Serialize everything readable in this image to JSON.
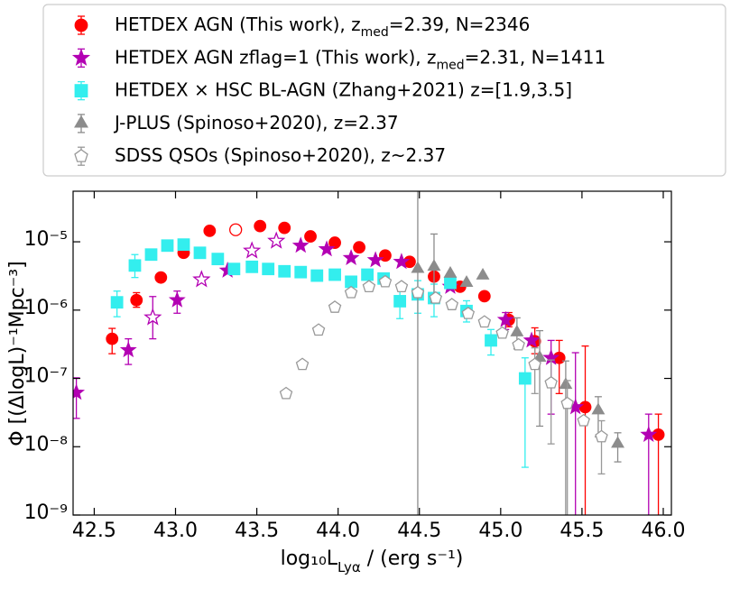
{
  "chart_data": {
    "type": "scatter",
    "xlabel": [
      "log₁₀L",
      "Lyα",
      " / (erg s⁻¹)"
    ],
    "ylabel": "Φ [(ΔlogL)⁻¹Mpc⁻³]",
    "xlim": [
      42.37,
      46.05
    ],
    "ylim": [
      1e-09,
      5.5e-05
    ],
    "ylog": true,
    "xticks": [
      {
        "value": 42.5,
        "label": "42.5"
      },
      {
        "value": 43,
        "label": "43.0"
      },
      {
        "value": 43.5,
        "label": "43.5"
      },
      {
        "value": 44,
        "label": "44.0"
      },
      {
        "value": 44.5,
        "label": "44.5"
      },
      {
        "value": 45,
        "label": "45.0"
      },
      {
        "value": 45.5,
        "label": "45.5"
      },
      {
        "value": 46,
        "label": "46.0"
      }
    ],
    "yticks": [
      {
        "value": 1e-09,
        "label": "10⁻⁹"
      },
      {
        "value": 1e-08,
        "label": "10⁻⁸"
      },
      {
        "value": 1e-07,
        "label": "10⁻⁷"
      },
      {
        "value": 1e-06,
        "label": "10⁻⁶"
      },
      {
        "value": 1e-05,
        "label": "10⁻⁵"
      }
    ],
    "legend": "top",
    "series": [
      {
        "name": [
          "HETDEX AGN (This work), z",
          "med",
          "=2.39, N=2346"
        ],
        "color": "#ff0000",
        "marker": "circle",
        "x": [
          42.61,
          42.76,
          42.91,
          43.05,
          43.21,
          43.37,
          43.52,
          43.67,
          43.83,
          43.98,
          44.13,
          44.29,
          44.44,
          44.59,
          44.75,
          44.9,
          45.05,
          45.21,
          45.36,
          45.52,
          45.97
        ],
        "values": [
          3.8e-07,
          1.4e-06,
          3e-06,
          6.9e-06,
          1.45e-05,
          1.5e-05,
          1.7e-05,
          1.6e-05,
          1.2e-05,
          9.7e-06,
          8.3e-06,
          6.3e-06,
          5.1e-06,
          3.1e-06,
          2.2e-06,
          1.6e-06,
          7.2e-07,
          3.5e-07,
          2e-07,
          3.8e-08,
          1.5e-08
        ],
        "errors": [
          [
            1.5e-07,
            1.6e-07
          ],
          [
            3e-07,
            4e-07
          ],
          null,
          null,
          null,
          null,
          null,
          null,
          null,
          null,
          null,
          null,
          null,
          null,
          null,
          null,
          [
            1.5e-07,
            2e-07
          ],
          [
            1.2e-07,
            2e-07
          ],
          [
            1.4e-07,
            1.6e-07
          ],
          [
            3.8e-08,
            2.6e-07
          ],
          [
            1.5e-08,
            1.5e-08
          ]
        ],
        "hollow": [
          5
        ]
      },
      {
        "name": [
          "HETDEX AGN zflag=1 (This work), z",
          "med",
          "=2.31, N=1411"
        ],
        "color": "#b300b3",
        "marker": "star",
        "x": [
          42.39,
          42.71,
          42.86,
          43.01,
          43.16,
          43.32,
          43.47,
          43.62,
          43.77,
          43.93,
          44.08,
          44.23,
          44.39,
          44.69,
          45.03,
          45.19,
          45.31,
          45.46,
          45.91
        ],
        "values": [
          6.2e-08,
          2.6e-07,
          7.8e-07,
          1.4e-06,
          2.8e-06,
          3.8e-06,
          7.4e-06,
          1.03e-05,
          8.8e-06,
          7.8e-06,
          5.8e-06,
          5.4e-06,
          5.1e-06,
          2.2e-06,
          7.2e-07,
          3.6e-07,
          2e-07,
          3.8e-08,
          1.5e-08
        ],
        "errors": [
          [
            3.6e-08,
            4e-08
          ],
          [
            1e-07,
            1.2e-07
          ],
          [
            4e-07,
            8e-07
          ],
          [
            5e-07,
            5e-07
          ],
          null,
          null,
          null,
          null,
          null,
          null,
          null,
          null,
          null,
          null,
          [
            2e-07,
            2e-07
          ],
          null,
          [
            1.7e-07,
            1.6e-07
          ],
          [
            3.8e-08,
            2e-07
          ],
          [
            1.5e-08,
            1.5e-08
          ]
        ],
        "hollow": [
          2,
          4,
          6,
          7
        ]
      },
      {
        "name": [
          "HETDEX × HSC BL-AGN (Zhang+2021) z=[1.9,3.5]"
        ],
        "color": "#33eeee",
        "marker": "square",
        "x": [
          42.64,
          42.75,
          42.85,
          42.95,
          43.05,
          43.15,
          43.26,
          43.36,
          43.47,
          43.57,
          43.67,
          43.77,
          43.87,
          43.98,
          44.08,
          44.18,
          44.28,
          44.38,
          44.49,
          44.59,
          44.69,
          44.79,
          44.94,
          45.15
        ],
        "values": [
          1.3e-06,
          4.5e-06,
          6.5e-06,
          8.8e-06,
          9.1e-06,
          6.9e-06,
          5.6e-06,
          4e-06,
          4.3e-06,
          4e-06,
          3.7e-06,
          3.6e-06,
          3.2e-06,
          3.3e-06,
          2.6e-06,
          3.3e-06,
          2.9e-06,
          1.35e-06,
          1.7e-06,
          1.5e-06,
          2.5e-06,
          9.7e-07,
          3.6e-07,
          1e-07
        ],
        "errors": [
          [
            5e-07,
            6e-07
          ],
          [
            1.5e-06,
            2e-06
          ],
          null,
          null,
          null,
          null,
          null,
          null,
          null,
          null,
          null,
          null,
          null,
          null,
          null,
          null,
          null,
          [
            6e-07,
            8e-07
          ],
          [
            8e-07,
            1e-06
          ],
          [
            7e-07,
            9e-07
          ],
          null,
          [
            3e-07,
            4e-07
          ],
          [
            1.4e-07,
            1.6e-07
          ],
          [
            9.5e-08,
            1e-07
          ]
        ],
        "hollow": []
      },
      {
        "name": [
          "J-PLUS (Spinoso+2020), z=2.37"
        ],
        "color": "#8c8c8c",
        "marker": "triangle",
        "x": [
          44.49,
          44.59,
          44.69,
          44.79,
          44.89,
          45.1,
          45.24,
          45.4,
          45.6,
          45.72
        ],
        "values": [
          4e-06,
          4.3e-06,
          3.4e-06,
          2.5e-06,
          3.2e-06,
          4.7e-07,
          2e-07,
          8e-08,
          3.4e-08,
          1.1e-08
        ],
        "errors": [
          [
            4e-06,
            0.0001
          ],
          [
            3e-06,
            8.7e-06
          ],
          null,
          null,
          null,
          [
            2e-07,
            3e-07
          ],
          [
            1.8e-07,
            3e-07
          ],
          [
            8e-08,
            1e-07
          ],
          [
            2e-08,
            2e-08
          ],
          [
            5e-09,
            5e-09
          ]
        ],
        "hollow": []
      },
      {
        "name": [
          "SDSS QSOs (Spinoso+2020), z~2.37"
        ],
        "color": "#999999",
        "marker": "pentagon",
        "x": [
          43.68,
          43.78,
          43.88,
          43.98,
          44.08,
          44.19,
          44.29,
          44.39,
          44.49,
          44.6,
          44.7,
          44.8,
          44.9,
          45.01,
          45.11,
          45.21,
          45.31,
          45.41,
          45.51,
          45.62
        ],
        "values": [
          6e-08,
          1.6e-07,
          5.1e-07,
          1.1e-06,
          1.8e-06,
          2.2e-06,
          2.6e-06,
          2.2e-06,
          1.8e-06,
          1.5e-06,
          1.2e-06,
          8.9e-07,
          6.7e-07,
          4.6e-07,
          3.1e-07,
          1.6e-07,
          8.6e-08,
          4.3e-08,
          2.4e-08,
          1.4e-08
        ],
        "errors": [
          null,
          null,
          null,
          null,
          null,
          null,
          null,
          null,
          null,
          null,
          null,
          null,
          null,
          null,
          null,
          [
            1e-07,
            1.2e-07
          ],
          [
            7.5e-08,
            1e-07
          ],
          [
            4.3e-08,
            5e-08
          ],
          null,
          [
            1e-08,
            1e-08
          ]
        ],
        "hollow": [
          0,
          1,
          2,
          3,
          4,
          5,
          6,
          7,
          8,
          9,
          10,
          11,
          12,
          13,
          14,
          15,
          16,
          17,
          18,
          19
        ]
      }
    ]
  }
}
